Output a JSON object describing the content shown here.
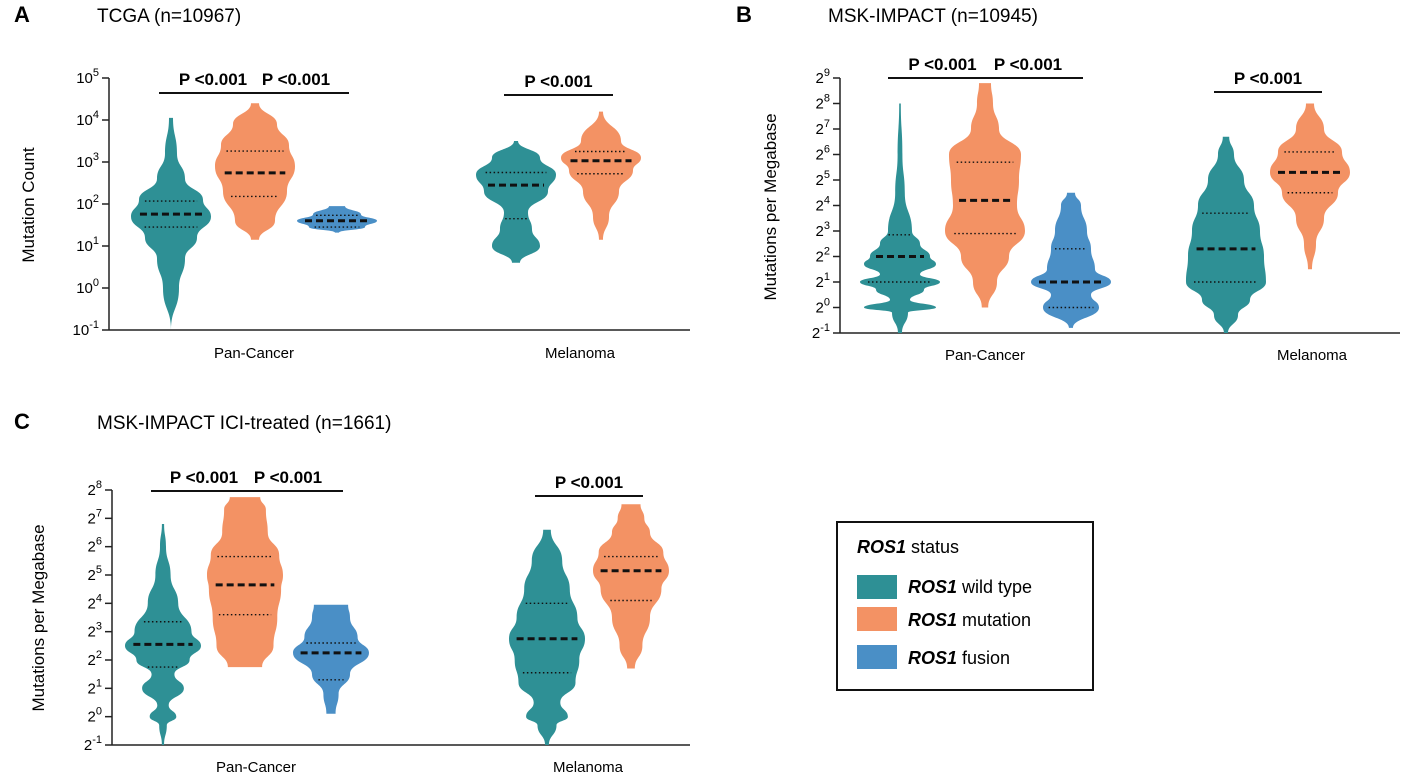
{
  "legend": {
    "title_italic": "ROS1",
    "title_rest": " status",
    "entries": [
      {
        "italic": "ROS1",
        "rest": " wild type",
        "color": "#2e9095"
      },
      {
        "italic": "ROS1",
        "rest": " mutation",
        "color": "#f39264"
      },
      {
        "italic": "ROS1",
        "rest": " fusion",
        "color": "#4a8fc6"
      }
    ]
  },
  "chart_data": [
    {
      "panel": "A",
      "type": "violin",
      "title": "TCGA (n=10967)",
      "ylabel": "Mutation Count",
      "yscale": "log10",
      "ylim": [
        -1,
        5
      ],
      "yticks": [
        {
          "base": "10",
          "exp": "5"
        },
        {
          "base": "10",
          "exp": "4"
        },
        {
          "base": "10",
          "exp": "3"
        },
        {
          "base": "10",
          "exp": "2"
        },
        {
          "base": "10",
          "exp": "1"
        },
        {
          "base": "10",
          "exp": "0"
        },
        {
          "base": "10",
          "exp": "-1"
        }
      ],
      "categories": [
        "Pan-Cancer",
        "Melanoma"
      ],
      "series": [
        {
          "name": "ROS1 wild type",
          "category": "Pan-Cancer",
          "color": "#2e9095",
          "min": -1.0,
          "max": 4.05,
          "median": 1.76,
          "q1": 1.45,
          "q3": 2.07,
          "profile": [
            [
              -1.0,
              0.0
            ],
            [
              0.0,
              0.2
            ],
            [
              0.7,
              0.35
            ],
            [
              1.2,
              0.65
            ],
            [
              1.7,
              1.0
            ],
            [
              2.1,
              0.8
            ],
            [
              2.6,
              0.35
            ],
            [
              3.2,
              0.15
            ],
            [
              4.05,
              0.05
            ]
          ]
        },
        {
          "name": "ROS1 mutation",
          "category": "Pan-Cancer",
          "color": "#f39264",
          "min": 1.15,
          "max": 4.4,
          "median": 2.74,
          "q1": 2.18,
          "q3": 3.26,
          "profile": [
            [
              1.15,
              0.1
            ],
            [
              1.6,
              0.5
            ],
            [
              2.3,
              0.8
            ],
            [
              2.9,
              1.0
            ],
            [
              3.4,
              0.85
            ],
            [
              3.9,
              0.55
            ],
            [
              4.4,
              0.1
            ]
          ]
        },
        {
          "name": "ROS1 fusion",
          "category": "Pan-Cancer",
          "color": "#4a8fc6",
          "min": 1.32,
          "max": 1.95,
          "median": 1.6,
          "q1": 1.45,
          "q3": 1.73,
          "profile": [
            [
              1.32,
              0.05
            ],
            [
              1.45,
              0.7
            ],
            [
              1.6,
              1.0
            ],
            [
              1.75,
              0.6
            ],
            [
              1.95,
              0.2
            ]
          ]
        },
        {
          "name": "ROS1 wild type",
          "category": "Melanoma",
          "color": "#2e9095",
          "min": 0.6,
          "max": 3.5,
          "median": 2.45,
          "q1": 1.65,
          "q3": 2.75,
          "profile": [
            [
              0.6,
              0.1
            ],
            [
              1.0,
              0.6
            ],
            [
              1.4,
              0.4
            ],
            [
              1.8,
              0.3
            ],
            [
              2.3,
              0.8
            ],
            [
              2.7,
              1.0
            ],
            [
              3.1,
              0.6
            ],
            [
              3.5,
              0.05
            ]
          ]
        },
        {
          "name": "ROS1 mutation",
          "category": "Melanoma",
          "color": "#f39264",
          "min": 1.15,
          "max": 4.2,
          "median": 3.03,
          "q1": 2.72,
          "q3": 3.25,
          "profile": [
            [
              1.15,
              0.05
            ],
            [
              1.7,
              0.2
            ],
            [
              2.3,
              0.45
            ],
            [
              2.8,
              0.8
            ],
            [
              3.1,
              1.0
            ],
            [
              3.5,
              0.5
            ],
            [
              4.2,
              0.05
            ]
          ]
        }
      ],
      "comparisons": [
        {
          "label": "P <0.001",
          "category": "Pan-Cancer",
          "from": 0,
          "to": 1
        },
        {
          "label": "P <0.001",
          "category": "Pan-Cancer",
          "from": 1,
          "to": 2
        },
        {
          "label": "P <0.001",
          "category": "Melanoma",
          "from": 0,
          "to": 1
        }
      ]
    },
    {
      "panel": "B",
      "type": "violin",
      "title": "MSK-IMPACT  (n=10945)",
      "ylabel": "Mutations per Megabase",
      "yscale": "log2",
      "ylim": [
        -1,
        9
      ],
      "yticks": [
        {
          "base": "2",
          "exp": "9"
        },
        {
          "base": "2",
          "exp": "8"
        },
        {
          "base": "2",
          "exp": "7"
        },
        {
          "base": "2",
          "exp": "6"
        },
        {
          "base": "2",
          "exp": "5"
        },
        {
          "base": "2",
          "exp": "4"
        },
        {
          "base": "2",
          "exp": "3"
        },
        {
          "base": "2",
          "exp": "2"
        },
        {
          "base": "2",
          "exp": "1"
        },
        {
          "base": "2",
          "exp": "0"
        },
        {
          "base": "2",
          "exp": "-1"
        }
      ],
      "categories": [
        "Pan-Cancer",
        "Melanoma"
      ],
      "series": [
        {
          "name": "ROS1 wild type",
          "category": "Pan-Cancer",
          "color": "#2e9095",
          "min": -1.0,
          "max": 8.0,
          "median": 2.0,
          "q1": 1.0,
          "q3": 2.85,
          "profile": [
            [
              -1.0,
              0.05
            ],
            [
              -0.2,
              0.2
            ],
            [
              0.0,
              0.9
            ],
            [
              0.3,
              0.25
            ],
            [
              0.7,
              0.6
            ],
            [
              1.0,
              1.0
            ],
            [
              1.3,
              0.5
            ],
            [
              1.7,
              0.9
            ],
            [
              2.0,
              0.75
            ],
            [
              2.5,
              0.5
            ],
            [
              3.0,
              0.3
            ],
            [
              4.5,
              0.12
            ],
            [
              6.0,
              0.06
            ],
            [
              8.0,
              0.02
            ]
          ]
        },
        {
          "name": "ROS1 mutation",
          "category": "Pan-Cancer",
          "color": "#f39264",
          "min": 0.0,
          "max": 8.8,
          "median": 4.2,
          "q1": 2.9,
          "q3": 5.7,
          "profile": [
            [
              0.0,
              0.08
            ],
            [
              1.0,
              0.3
            ],
            [
              2.0,
              0.6
            ],
            [
              3.0,
              1.0
            ],
            [
              4.0,
              0.8
            ],
            [
              5.0,
              0.85
            ],
            [
              6.0,
              0.9
            ],
            [
              7.0,
              0.35
            ],
            [
              8.0,
              0.2
            ],
            [
              8.8,
              0.15
            ]
          ]
        },
        {
          "name": "ROS1 fusion",
          "category": "Pan-Cancer",
          "color": "#4a8fc6",
          "min": -0.8,
          "max": 4.5,
          "median": 1.0,
          "q1": 0.0,
          "q3": 2.3,
          "profile": [
            [
              -0.8,
              0.05
            ],
            [
              0.0,
              0.7
            ],
            [
              0.5,
              0.5
            ],
            [
              1.0,
              1.0
            ],
            [
              1.5,
              0.6
            ],
            [
              2.3,
              0.5
            ],
            [
              3.0,
              0.4
            ],
            [
              4.0,
              0.25
            ],
            [
              4.5,
              0.1
            ]
          ]
        },
        {
          "name": "ROS1 wild type",
          "category": "Melanoma",
          "color": "#2e9095",
          "min": -1.0,
          "max": 6.7,
          "median": 2.3,
          "q1": 1.0,
          "q3": 3.7,
          "profile": [
            [
              -1.0,
              0.05
            ],
            [
              -0.3,
              0.3
            ],
            [
              0.3,
              0.6
            ],
            [
              1.0,
              1.0
            ],
            [
              2.0,
              0.95
            ],
            [
              3.0,
              0.85
            ],
            [
              4.0,
              0.7
            ],
            [
              5.0,
              0.45
            ],
            [
              6.0,
              0.2
            ],
            [
              6.7,
              0.08
            ]
          ]
        },
        {
          "name": "ROS1 mutation",
          "category": "Melanoma",
          "color": "#f39264",
          "min": 1.5,
          "max": 8.0,
          "median": 5.3,
          "q1": 4.5,
          "q3": 6.1,
          "profile": [
            [
              1.5,
              0.05
            ],
            [
              2.5,
              0.15
            ],
            [
              3.5,
              0.35
            ],
            [
              4.5,
              0.7
            ],
            [
              5.3,
              1.0
            ],
            [
              6.1,
              0.8
            ],
            [
              7.0,
              0.35
            ],
            [
              8.0,
              0.1
            ]
          ]
        }
      ],
      "comparisons": [
        {
          "label": "P <0.001",
          "category": "Pan-Cancer",
          "from": 0,
          "to": 1
        },
        {
          "label": "P <0.001",
          "category": "Pan-Cancer",
          "from": 1,
          "to": 2
        },
        {
          "label": "P <0.001",
          "category": "Melanoma",
          "from": 0,
          "to": 1
        }
      ]
    },
    {
      "panel": "C",
      "type": "violin",
      "title": "MSK-IMPACT ICI-treated (n=1661)",
      "ylabel": "Mutations per Megabase",
      "yscale": "log2",
      "ylim": [
        -1,
        8
      ],
      "yticks": [
        {
          "base": "2",
          "exp": "8"
        },
        {
          "base": "2",
          "exp": "7"
        },
        {
          "base": "2",
          "exp": "6"
        },
        {
          "base": "2",
          "exp": "5"
        },
        {
          "base": "2",
          "exp": "4"
        },
        {
          "base": "2",
          "exp": "3"
        },
        {
          "base": "2",
          "exp": "2"
        },
        {
          "base": "2",
          "exp": "1"
        },
        {
          "base": "2",
          "exp": "0"
        },
        {
          "base": "2",
          "exp": "-1"
        }
      ],
      "categories": [
        "Pan-Cancer",
        "Melanoma"
      ],
      "series": [
        {
          "name": "ROS1 wild type",
          "category": "Pan-Cancer",
          "color": "#2e9095",
          "min": -1.0,
          "max": 6.8,
          "median": 2.55,
          "q1": 1.75,
          "q3": 3.35,
          "profile": [
            [
              -1.0,
              0.03
            ],
            [
              -0.3,
              0.1
            ],
            [
              0.0,
              0.35
            ],
            [
              0.4,
              0.15
            ],
            [
              1.0,
              0.55
            ],
            [
              1.5,
              0.3
            ],
            [
              2.0,
              0.7
            ],
            [
              2.5,
              1.0
            ],
            [
              3.0,
              0.75
            ],
            [
              4.0,
              0.4
            ],
            [
              5.0,
              0.2
            ],
            [
              6.0,
              0.08
            ],
            [
              6.8,
              0.03
            ]
          ]
        },
        {
          "name": "ROS1 mutation",
          "category": "Pan-Cancer",
          "color": "#f39264",
          "min": 1.75,
          "max": 7.75,
          "median": 4.65,
          "q1": 3.6,
          "q3": 5.65,
          "profile": [
            [
              1.75,
              0.45
            ],
            [
              2.5,
              0.75
            ],
            [
              3.5,
              0.85
            ],
            [
              4.5,
              0.95
            ],
            [
              5.0,
              1.0
            ],
            [
              5.7,
              0.9
            ],
            [
              6.5,
              0.6
            ],
            [
              7.3,
              0.55
            ],
            [
              7.75,
              0.4
            ]
          ]
        },
        {
          "name": "ROS1 fusion",
          "category": "Pan-Cancer",
          "color": "#4a8fc6",
          "min": 0.1,
          "max": 3.95,
          "median": 2.25,
          "q1": 1.3,
          "q3": 2.6,
          "profile": [
            [
              0.1,
              0.12
            ],
            [
              0.8,
              0.2
            ],
            [
              1.5,
              0.5
            ],
            [
              2.25,
              1.0
            ],
            [
              2.8,
              0.7
            ],
            [
              3.5,
              0.5
            ],
            [
              3.95,
              0.45
            ]
          ]
        },
        {
          "name": "ROS1 wild type",
          "category": "Melanoma",
          "color": "#2e9095",
          "min": -1.0,
          "max": 6.6,
          "median": 2.75,
          "q1": 1.55,
          "q3": 4.0,
          "profile": [
            [
              -1.0,
              0.05
            ],
            [
              -0.3,
              0.25
            ],
            [
              0.0,
              0.55
            ],
            [
              0.5,
              0.35
            ],
            [
              1.2,
              0.75
            ],
            [
              2.0,
              0.85
            ],
            [
              2.75,
              1.0
            ],
            [
              3.5,
              0.8
            ],
            [
              4.5,
              0.6
            ],
            [
              5.5,
              0.4
            ],
            [
              6.6,
              0.1
            ]
          ]
        },
        {
          "name": "ROS1 mutation",
          "category": "Melanoma",
          "color": "#f39264",
          "min": 1.7,
          "max": 7.5,
          "median": 5.15,
          "q1": 4.1,
          "q3": 5.65,
          "profile": [
            [
              1.7,
              0.1
            ],
            [
              2.5,
              0.3
            ],
            [
              3.5,
              0.5
            ],
            [
              4.5,
              0.8
            ],
            [
              5.15,
              1.0
            ],
            [
              5.8,
              0.85
            ],
            [
              6.5,
              0.5
            ],
            [
              7.0,
              0.35
            ],
            [
              7.5,
              0.25
            ]
          ]
        }
      ],
      "comparisons": [
        {
          "label": "P <0.001",
          "category": "Pan-Cancer",
          "from": 0,
          "to": 1
        },
        {
          "label": "P <0.001",
          "category": "Pan-Cancer",
          "from": 1,
          "to": 2
        },
        {
          "label": "P <0.001",
          "category": "Melanoma",
          "from": 0,
          "to": 1
        }
      ]
    }
  ]
}
